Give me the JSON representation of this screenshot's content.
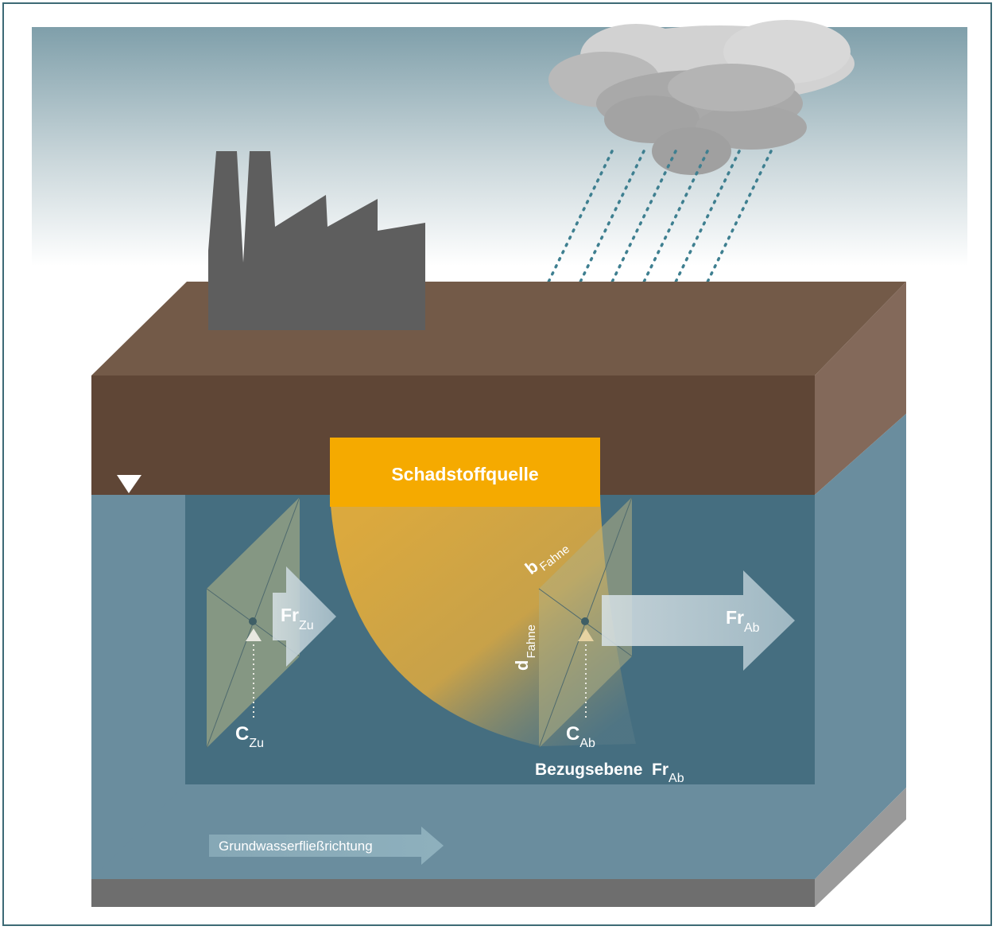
{
  "diagram": {
    "source_label": "Schadstoffquelle",
    "flow_direction_label": "Grundwasserfließrichtung",
    "plume_width": {
      "main": "b",
      "sub": "Fahne"
    },
    "plume_depth": {
      "main": "d",
      "sub": "Fahne"
    },
    "inflow_flux": {
      "main": "Fr",
      "sub": "Zu"
    },
    "outflow_flux": {
      "main": "Fr",
      "sub": "Ab"
    },
    "inflow_concentration": {
      "main": "C",
      "sub": "Zu"
    },
    "outflow_concentration": {
      "main": "C",
      "sub": "Ab"
    },
    "reference_plane": {
      "main": "Bezugsebene  Fr",
      "sub": "Ab"
    },
    "colors": {
      "sky_top": "#7f9faa",
      "soil_front": "#5f4636",
      "soil_top": "#735a48",
      "aquifer": "#6a8d9e",
      "aquifer_inner": "#456e80",
      "source": "#f5aa00",
      "base": "#6e6e6e"
    }
  }
}
